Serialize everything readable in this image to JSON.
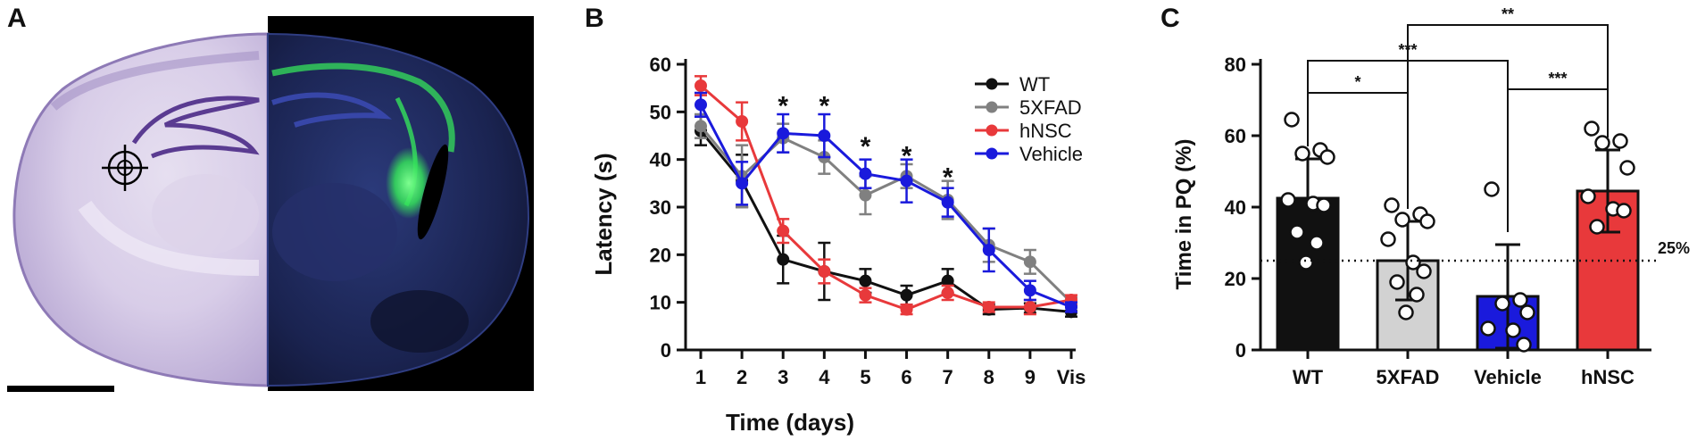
{
  "panels": {
    "a": {
      "letter": "A"
    },
    "b": {
      "letter": "B"
    },
    "c": {
      "letter": "C"
    }
  },
  "colors": {
    "wt": "#111111",
    "fivexfad": "#808080",
    "hnsc": "#e8393b",
    "vehicle": "#1a1adc",
    "bar_5xfad": "#d2d2d2",
    "nissl": "#8e7ab6",
    "gfp": "#35e25b",
    "dapi": "#1f2a63"
  },
  "brain_image": {
    "left_half": "nissl-stained-coronal-section",
    "right_half": "fluorescent-coronal-section",
    "target_marker": "crosshair-icon",
    "scale_bar": "scale-bar"
  },
  "chart_data": [
    {
      "type": "line",
      "panel": "B",
      "xlabel": "Time (days)",
      "ylabel": "Latency (s)",
      "categories": [
        "1",
        "2",
        "3",
        "4",
        "5",
        "6",
        "7",
        "8",
        "9",
        "Vis"
      ],
      "ylim": [
        0,
        60
      ],
      "yticks": [
        0,
        10,
        20,
        30,
        40,
        50,
        60
      ],
      "legend_position": "top-right",
      "series": [
        {
          "name": "WT",
          "color_key": "wt",
          "values": [
            46.0,
            35.5,
            19.0,
            16.5,
            14.5,
            11.5,
            14.5,
            8.5,
            8.8,
            8.0
          ],
          "errors": [
            3.0,
            5.5,
            5.0,
            6.0,
            2.5,
            2.0,
            2.5,
            1.0,
            1.0,
            1.0
          ]
        },
        {
          "name": "5XFAD",
          "color_key": "fivexfad",
          "values": [
            47.0,
            36.5,
            44.5,
            40.5,
            32.5,
            36.5,
            31.5,
            22.0,
            18.5,
            10.0
          ],
          "errors": [
            2.5,
            6.5,
            3.0,
            3.5,
            4.0,
            2.5,
            4.0,
            3.5,
            2.5,
            1.0
          ]
        },
        {
          "name": "hNSC",
          "color_key": "hnsc",
          "values": [
            55.5,
            48.0,
            25.0,
            16.5,
            11.5,
            8.5,
            12.0,
            9.0,
            9.0,
            10.5
          ],
          "errors": [
            2.0,
            4.0,
            2.5,
            2.5,
            1.5,
            1.0,
            1.5,
            1.0,
            1.5,
            1.0
          ]
        },
        {
          "name": "Vehicle",
          "color_key": "vehicle",
          "values": [
            51.5,
            35.0,
            45.5,
            45.0,
            37.0,
            35.5,
            31.0,
            21.0,
            12.5,
            9.0
          ],
          "errors": [
            2.5,
            4.5,
            4.0,
            4.5,
            3.0,
            4.5,
            3.0,
            4.5,
            2.0,
            1.0
          ]
        }
      ],
      "significance": [
        {
          "category": "3",
          "label": "*",
          "value": 52
        },
        {
          "category": "4",
          "label": "*",
          "value": 52
        },
        {
          "category": "5",
          "label": "*",
          "value": 43.5
        },
        {
          "category": "6",
          "label": "*",
          "value": 41.5
        },
        {
          "category": "7",
          "label": "*",
          "value": 37
        }
      ]
    },
    {
      "type": "bar",
      "panel": "C",
      "xlabel": "",
      "ylabel": "Time in PQ (%)",
      "categories": [
        "WT",
        "5XFAD",
        "Vehicle",
        "hNSC"
      ],
      "color_keys": [
        "wt",
        "bar_5xfad",
        "vehicle",
        "hnsc"
      ],
      "ylim": [
        0,
        80
      ],
      "yticks": [
        0,
        20,
        40,
        60,
        80
      ],
      "values": [
        42.5,
        25.0,
        15.0,
        44.5
      ],
      "errors": [
        11.0,
        11.0,
        14.5,
        11.5
      ],
      "points": [
        [
          64.5,
          56.0,
          55.0,
          54.0,
          42.0,
          41.0,
          40.5,
          33.0,
          30.0,
          24.5
        ],
        [
          40.5,
          38.0,
          36.5,
          36.0,
          31.0,
          24.5,
          22.0,
          19.0,
          15.5,
          10.5
        ],
        [
          45.0,
          14.0,
          13.0,
          10.5,
          6.0,
          5.5,
          1.5
        ],
        [
          62.0,
          58.5,
          58.0,
          51.0,
          43.0,
          39.5,
          39.0,
          34.5
        ]
      ],
      "reference_line": {
        "value": 25,
        "label": "25%"
      },
      "significance": [
        {
          "from": "WT",
          "to": "5XFAD",
          "label": "*",
          "value": 72
        },
        {
          "from": "WT",
          "to": "Vehicle",
          "label": "***",
          "value": 81
        },
        {
          "from": "Vehicle",
          "to": "hNSC",
          "label": "***",
          "value": 73
        },
        {
          "from": "5XFAD",
          "to": "hNSC",
          "label": "**",
          "value": 91
        }
      ]
    }
  ]
}
